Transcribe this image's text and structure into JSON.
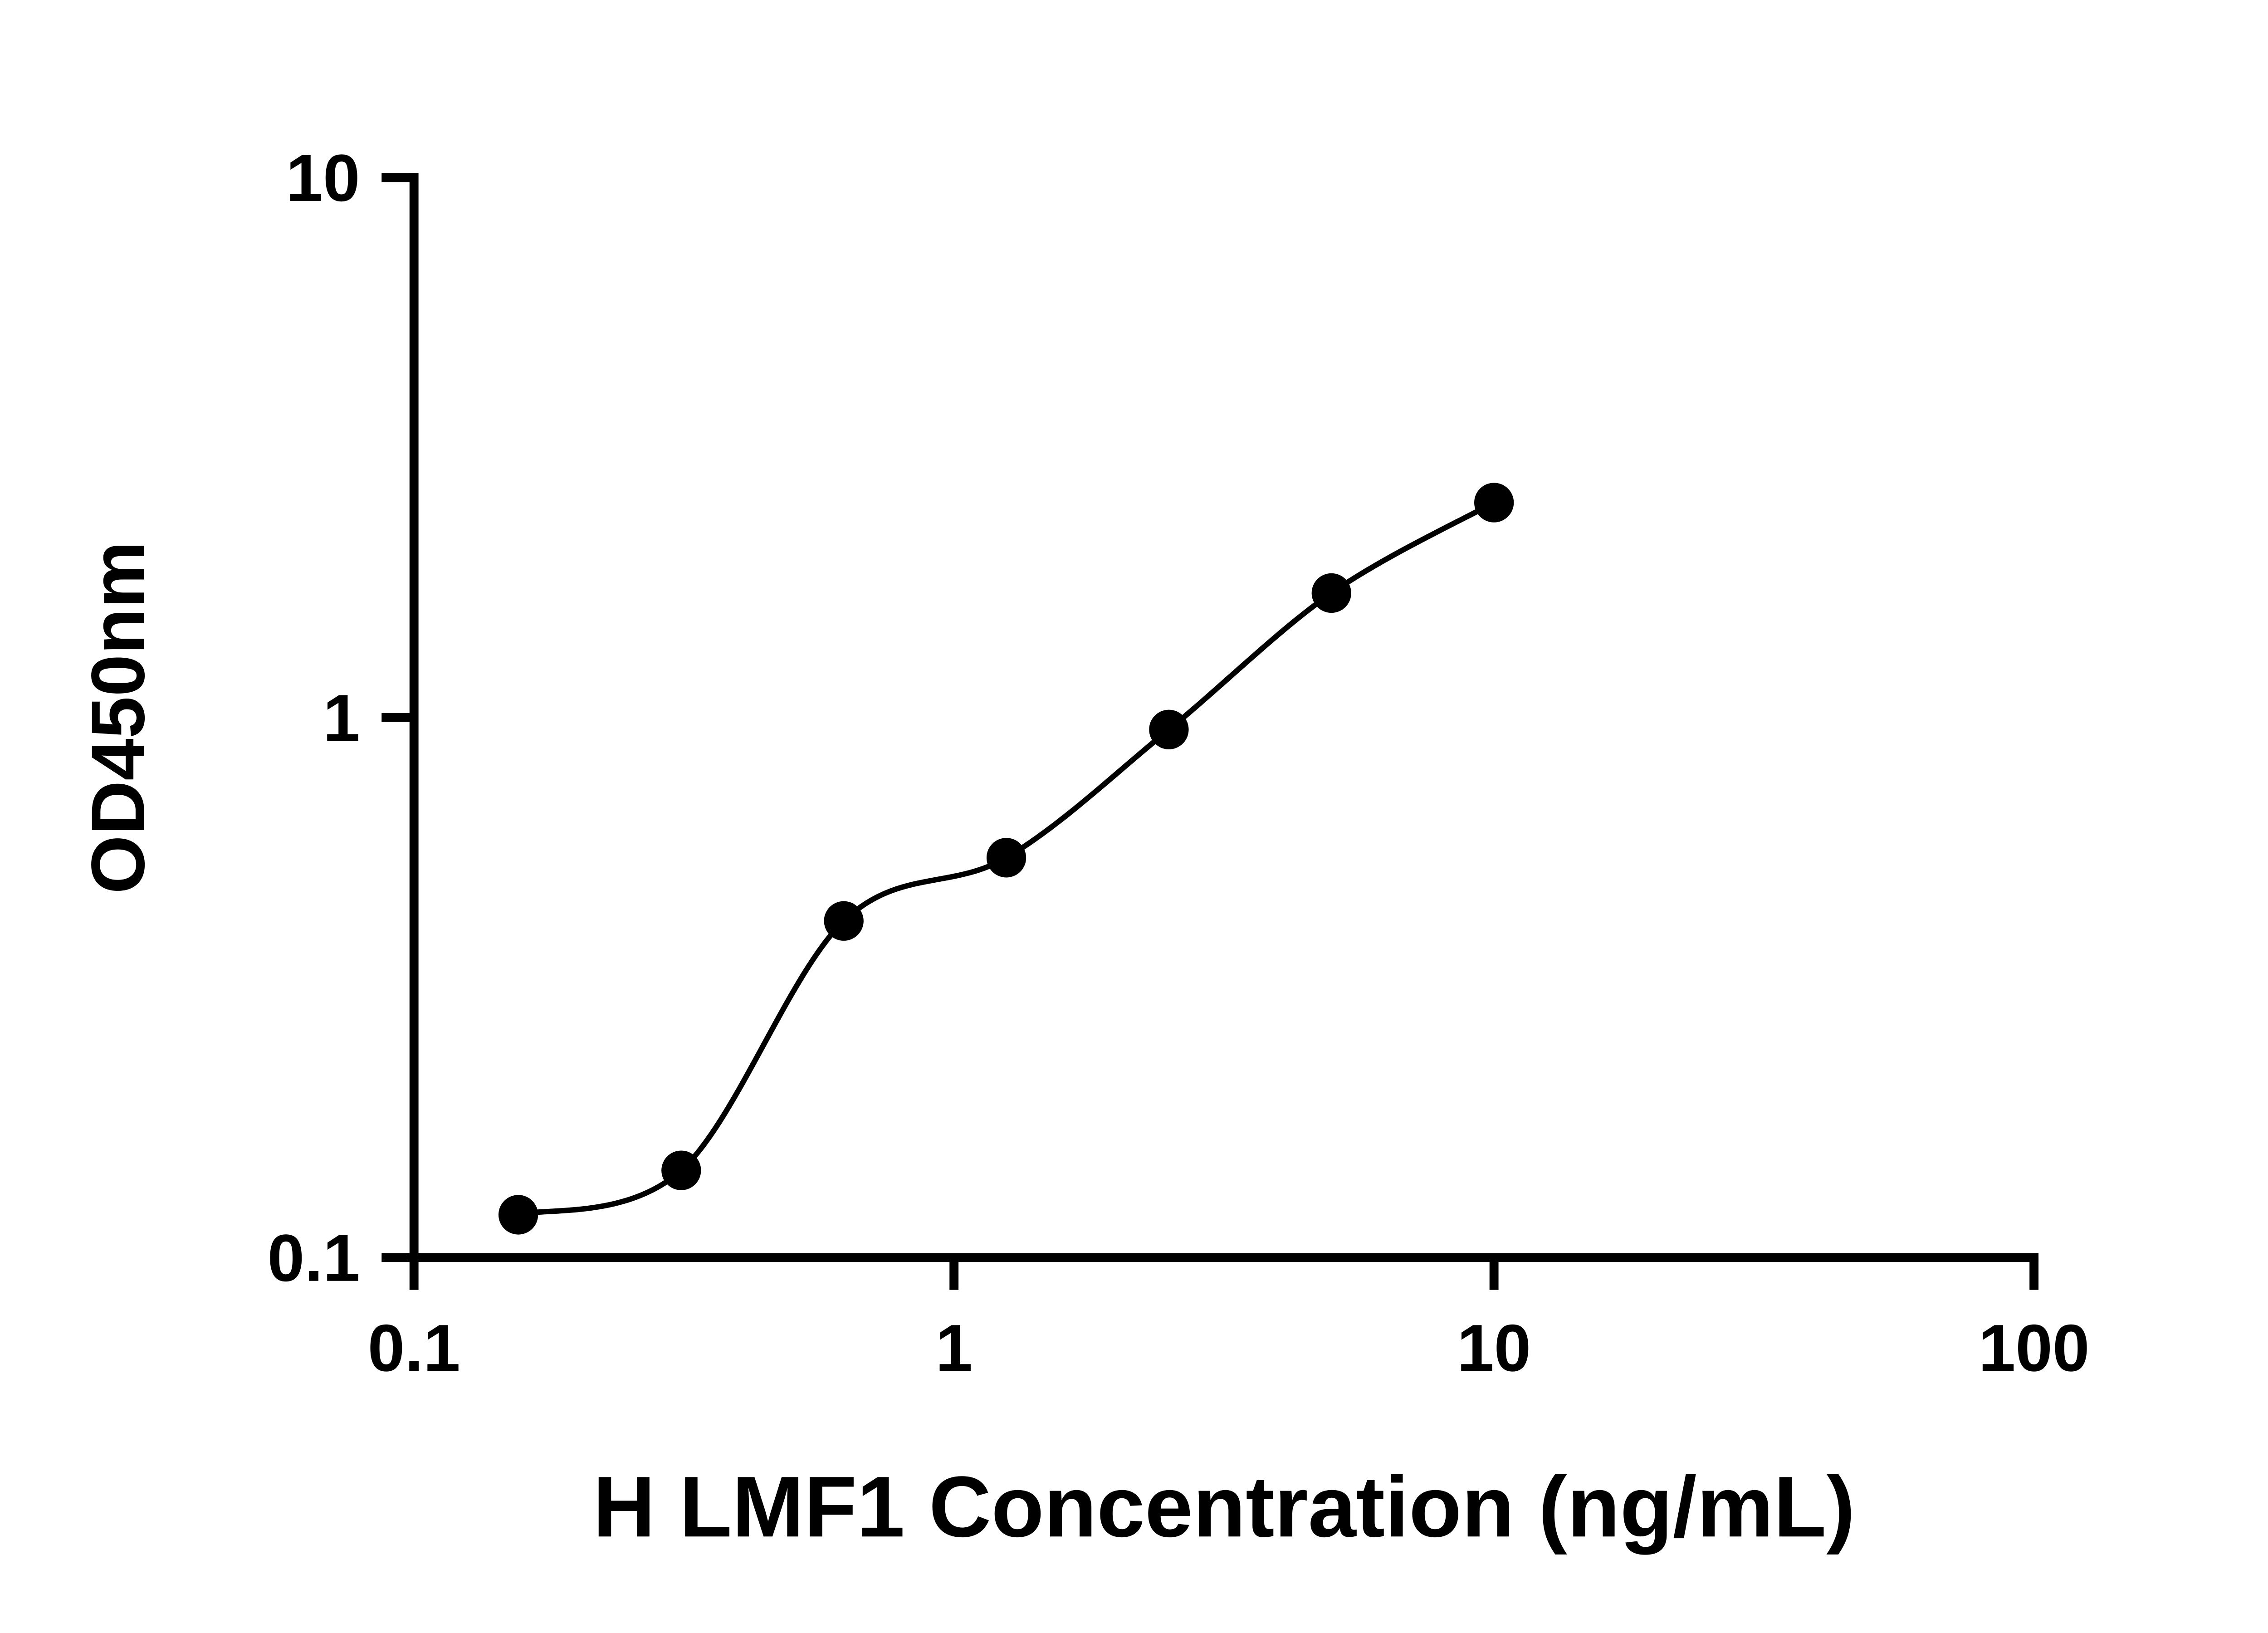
{
  "chart_data": {
    "type": "scatter",
    "title": "",
    "xlabel": "H LMF1 Concentration (ng/mL)",
    "ylabel": "OD450nm",
    "x_scale": "log",
    "y_scale": "log",
    "xlim": [
      0.1,
      100
    ],
    "ylim": [
      0.1,
      10
    ],
    "x_ticks": [
      0.1,
      1,
      10,
      100
    ],
    "y_ticks": [
      0.1,
      1,
      10
    ],
    "grid": false,
    "legend": false,
    "marker_color": "#000000",
    "line_color": "#000000",
    "series": [
      {
        "marker": "circle",
        "line": "smooth",
        "x": [
          0.156,
          0.3125,
          0.625,
          1.25,
          2.5,
          5,
          10
        ],
        "y": [
          0.12,
          0.145,
          0.42,
          0.55,
          0.95,
          1.7,
          2.5
        ]
      }
    ]
  }
}
